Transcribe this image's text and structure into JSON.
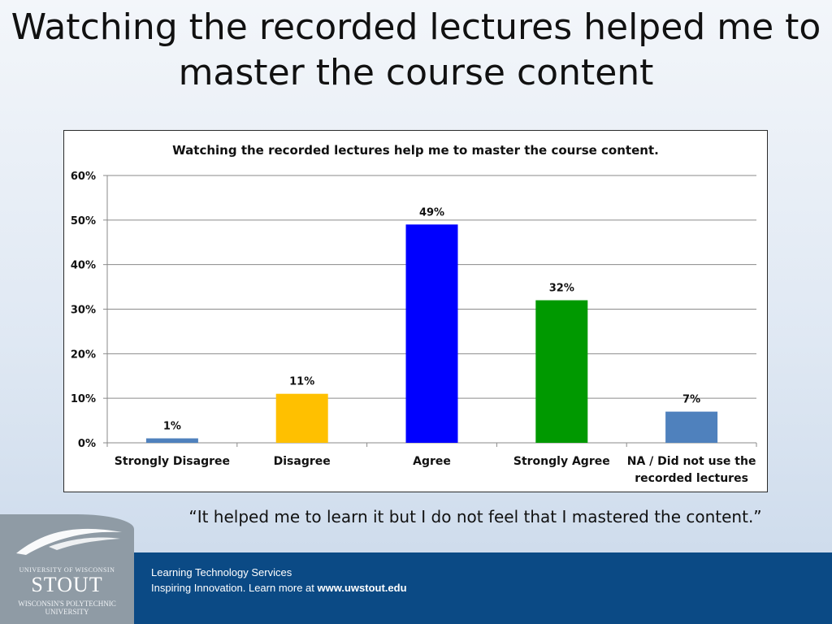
{
  "slide": {
    "title_line1": "Watching the recorded lectures helped me to",
    "title_line2": "master the course content",
    "quote": "“It helped me to learn it but I do not feel that I mastered the content.”"
  },
  "footer": {
    "line1": "Learning Technology Services",
    "line2_text": "Inspiring Innovation.  Learn more at ",
    "line2_link": "www.uwstout.edu",
    "band_color": "#0b4a85"
  },
  "logo": {
    "line1": "UNIVERSITY OF WISCONSIN",
    "line2": "STOUT",
    "line3": "WISCONSIN'S POLYTECHNIC UNIVERSITY"
  },
  "chart_data": {
    "type": "bar",
    "title": "Watching the recorded lectures help me to master the course content.",
    "categories": [
      "Strongly Disagree",
      "Disagree",
      "Agree",
      "Strongly Agree",
      "NA / Did not use the recorded lectures"
    ],
    "category_lines": [
      [
        "Strongly Disagree"
      ],
      [
        "Disagree"
      ],
      [
        "Agree"
      ],
      [
        "Strongly Agree"
      ],
      [
        "NA / Did not use the",
        "recorded lectures"
      ]
    ],
    "values": [
      1,
      11,
      49,
      32,
      7
    ],
    "data_labels": [
      "1%",
      "11%",
      "49%",
      "32%",
      "7%"
    ],
    "colors": [
      "#4f81bd",
      "#ffc000",
      "#0000ff",
      "#009900",
      "#4f81bd"
    ],
    "yticks": [
      0,
      10,
      20,
      30,
      40,
      50,
      60
    ],
    "ytick_labels": [
      "0%",
      "10%",
      "20%",
      "30%",
      "40%",
      "50%",
      "60%"
    ],
    "ylim": [
      0,
      60
    ],
    "grid": true,
    "legend": "none"
  }
}
